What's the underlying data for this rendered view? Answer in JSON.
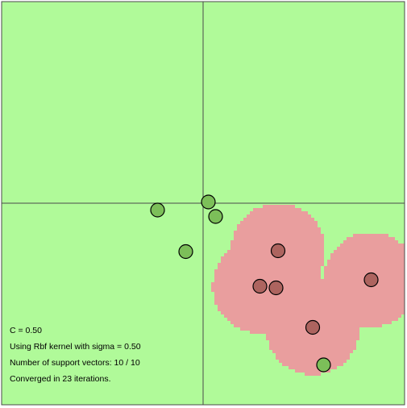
{
  "plot": {
    "axis_range": [
      -1,
      1
    ],
    "colors": {
      "background_region": "#b0fa99",
      "positive_region": "#e99e9e",
      "positive_point": "#ad645f",
      "negative_point": "#7cbf59",
      "axis_line": "#4a4a4a",
      "frame": "#4a4a4a",
      "point_stroke": "#000000"
    },
    "points": [
      {
        "label": 1,
        "x": 0.372,
        "y": -0.236
      },
      {
        "label": 1,
        "x": 0.282,
        "y": -0.412
      },
      {
        "label": 1,
        "x": 0.362,
        "y": -0.42
      },
      {
        "label": 1,
        "x": 0.834,
        "y": -0.38
      },
      {
        "label": 1,
        "x": 0.544,
        "y": -0.616
      },
      {
        "label": -1,
        "x": 0.026,
        "y": 0.006
      },
      {
        "label": -1,
        "x": 0.062,
        "y": -0.066
      },
      {
        "label": -1,
        "x": -0.226,
        "y": -0.034
      },
      {
        "label": -1,
        "x": -0.086,
        "y": -0.24
      },
      {
        "label": -1,
        "x": 0.598,
        "y": -0.802
      }
    ]
  },
  "info": {
    "c_line": "C = 0.50",
    "kernel_line": "Using Rbf kernel with sigma = 0.50",
    "sv_line": "Number of support vectors: 10 / 10",
    "converged_line": "Converged in 23 iterations."
  }
}
